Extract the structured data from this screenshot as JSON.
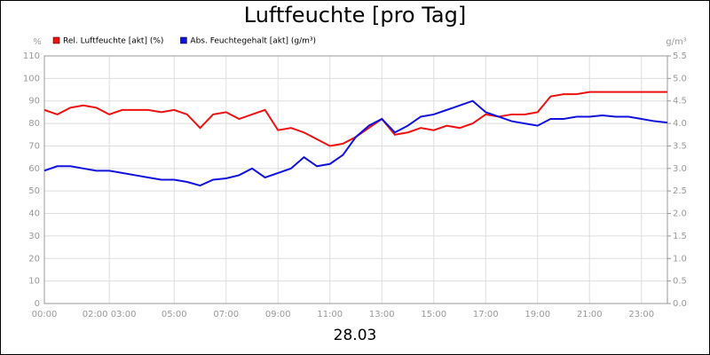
{
  "chart_data": {
    "type": "line",
    "title": "Luftfeuchte [pro Tag]",
    "xlabel": "28.03",
    "ylabel": "%",
    "y2label": "g/m³",
    "x": [
      0,
      0.5,
      1,
      1.5,
      2,
      2.5,
      3,
      3.5,
      4,
      4.5,
      5,
      5.5,
      6,
      6.5,
      7,
      7.5,
      8,
      8.5,
      9,
      9.5,
      10,
      10.5,
      11,
      11.5,
      12,
      12.5,
      13,
      13.5,
      14,
      14.5,
      15,
      15.5,
      16,
      16.5,
      17,
      17.5,
      18,
      18.5,
      19,
      19.5,
      20,
      20.5,
      21,
      21.5,
      22,
      22.5,
      23,
      23.5,
      24
    ],
    "series": [
      {
        "name": "Rel. Luftfeuchte [akt] (%)",
        "color": "#ee1111",
        "axis": "y",
        "values": [
          86,
          84,
          87,
          88,
          87,
          84,
          86,
          86,
          86,
          85,
          86,
          84,
          78,
          84,
          85,
          82,
          84,
          86,
          77,
          78,
          76,
          73,
          70,
          71,
          74,
          78,
          82,
          75,
          76,
          78,
          77,
          79,
          78,
          80,
          84,
          83,
          84,
          84,
          85,
          92,
          93,
          93,
          94,
          94,
          94,
          94,
          94,
          94,
          94
        ]
      },
      {
        "name": "Abs. Feuchtegehalt [akt] (g/m³)",
        "color": "#1111dd",
        "axis": "y2",
        "values": [
          2.95,
          3.05,
          3.05,
          3.0,
          2.95,
          2.95,
          2.9,
          2.85,
          2.8,
          2.75,
          2.75,
          2.7,
          2.62,
          2.75,
          2.78,
          2.85,
          3.0,
          2.8,
          2.9,
          3.0,
          3.25,
          3.05,
          3.1,
          3.3,
          3.7,
          3.95,
          4.1,
          3.8,
          3.95,
          4.15,
          4.2,
          4.3,
          4.4,
          4.5,
          4.25,
          4.15,
          4.05,
          4.0,
          3.95,
          4.1,
          4.1,
          4.15,
          4.15,
          4.18,
          4.15,
          4.15,
          4.1,
          4.05,
          4.02
        ]
      }
    ],
    "xlim": [
      0,
      24
    ],
    "xticks": [
      {
        "value": 0,
        "label": "00:00"
      },
      {
        "value": 2.5,
        "label": "02:00 03:00"
      },
      {
        "value": 5,
        "label": "05:00"
      },
      {
        "value": 7,
        "label": "07:00"
      },
      {
        "value": 9,
        "label": "09:00"
      },
      {
        "value": 11,
        "label": "11:00"
      },
      {
        "value": 13,
        "label": "13:00"
      },
      {
        "value": 15,
        "label": "15:00"
      },
      {
        "value": 17,
        "label": "17:00"
      },
      {
        "value": 19,
        "label": "19:00"
      },
      {
        "value": 21,
        "label": "21:00"
      },
      {
        "value": 23,
        "label": "23:00"
      }
    ],
    "ylim": [
      0,
      110
    ],
    "yticks": [
      0,
      10,
      20,
      30,
      40,
      50,
      60,
      70,
      80,
      90,
      100,
      110
    ],
    "y2lim": [
      0,
      5.5
    ],
    "y2ticks": [
      {
        "value": 0,
        "label": "0.0"
      },
      {
        "value": 0.5,
        "label": "0.5"
      },
      {
        "value": 1,
        "label": "1.0"
      },
      {
        "value": 1.5,
        "label": "1.5"
      },
      {
        "value": 2,
        "label": "2.0"
      },
      {
        "value": 2.5,
        "label": "2.5"
      },
      {
        "value": 3,
        "label": "3.0"
      },
      {
        "value": 3.5,
        "label": "3.5"
      },
      {
        "value": 4,
        "label": "4.0"
      },
      {
        "value": 4.5,
        "label": "4.5"
      },
      {
        "value": 5,
        "label": "5.0"
      },
      {
        "value": 5.5,
        "label": "5.5"
      }
    ],
    "grid": true
  }
}
